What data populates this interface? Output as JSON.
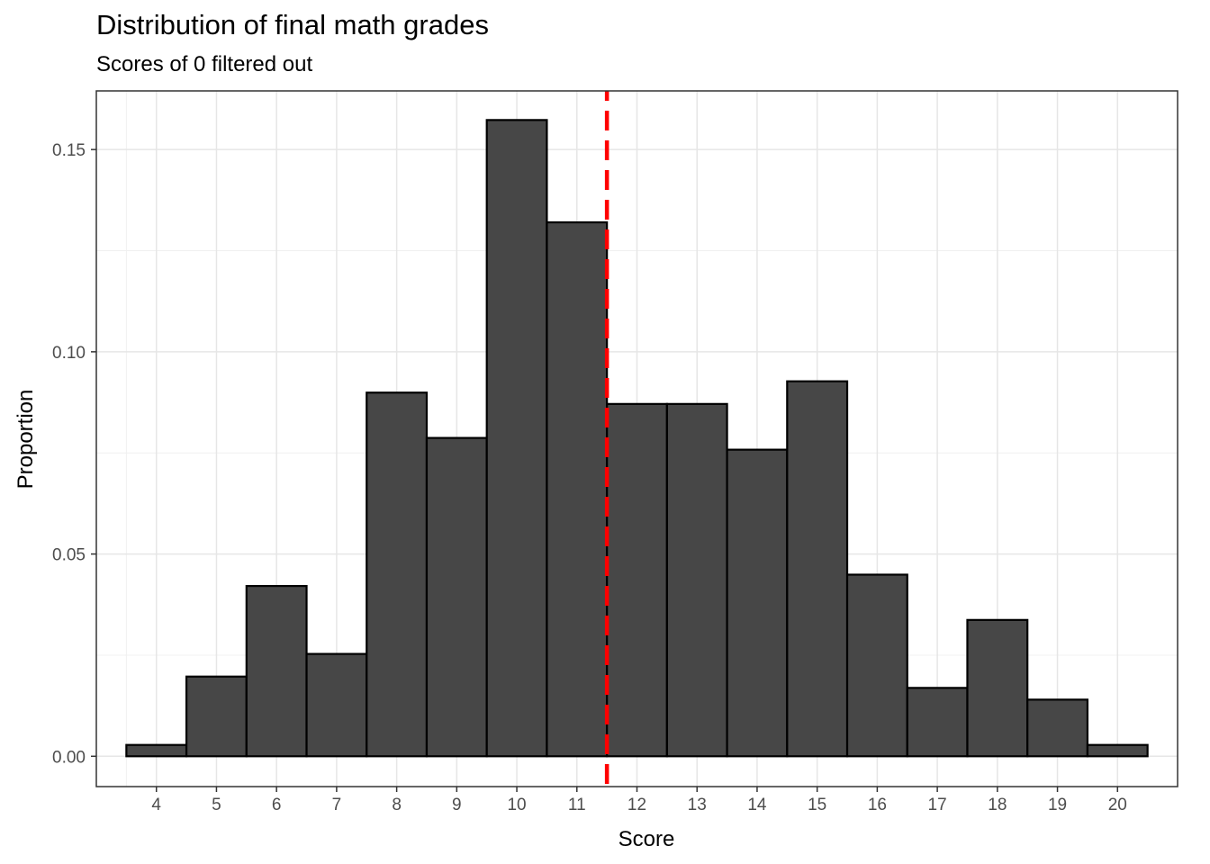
{
  "chart_data": {
    "type": "bar",
    "title": "Distribution of final math grades",
    "subtitle": "Scores of 0 filtered out",
    "xlabel": "Score",
    "ylabel": "Proportion",
    "categories": [
      "4",
      "5",
      "6",
      "7",
      "8",
      "9",
      "10",
      "11",
      "12",
      "13",
      "14",
      "15",
      "16",
      "17",
      "18",
      "19",
      "20"
    ],
    "x": [
      4,
      5,
      6,
      7,
      8,
      9,
      10,
      11,
      12,
      13,
      14,
      15,
      16,
      17,
      18,
      19,
      20
    ],
    "values": [
      0.0028,
      0.0197,
      0.0421,
      0.0253,
      0.0899,
      0.0787,
      0.1573,
      0.132,
      0.0871,
      0.0871,
      0.0758,
      0.0927,
      0.0449,
      0.0169,
      0.0337,
      0.014,
      0.0028
    ],
    "xlim": [
      3.0,
      21.0
    ],
    "ylim": [
      -0.0075,
      0.1645
    ],
    "yticks": [
      "0.00",
      "0.05",
      "0.10",
      "0.15"
    ],
    "ytick_values": [
      0,
      0.05,
      0.1,
      0.15
    ],
    "reference_line": {
      "x": 11.5,
      "style": "dashed",
      "color": "#ff0000"
    },
    "bar_fill": "#474747",
    "bar_outline": "#000000",
    "grid": true,
    "theme": "bw"
  }
}
